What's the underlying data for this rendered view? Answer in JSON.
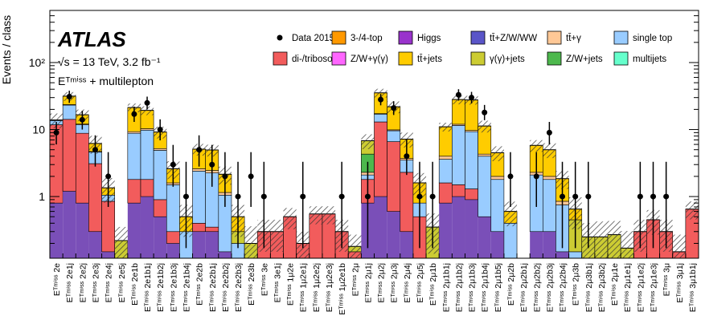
{
  "chart_data": {
    "type": "bar",
    "stacked": true,
    "ylabel": "Events / class",
    "yscale": "log",
    "ylim": [
      0.12,
      600
    ],
    "y_ticks": [
      {
        "value": 1,
        "label": "1"
      },
      {
        "value": 10,
        "label": "10"
      },
      {
        "value": 100,
        "label": "10²"
      }
    ],
    "annotations": {
      "experiment": "ATLAS",
      "energy": "√s = 13 TeV, 3.2 fb⁻¹",
      "selection": "Eᵀᵐⁱˢˢ + multilepton"
    },
    "legend": [
      {
        "label": "Data 2015",
        "type": "marker",
        "color": "#000000"
      },
      {
        "label": "3-/4-top",
        "type": "fill",
        "color": "#ff9900"
      },
      {
        "label": "Higgs",
        "type": "fill",
        "color": "#9933cc"
      },
      {
        "label": "tt̄+Z/W/WW",
        "type": "fill",
        "color": "#5a55c8"
      },
      {
        "label": "tt̄+γ",
        "type": "fill",
        "color": "#ffc896"
      },
      {
        "label": "single top",
        "type": "fill",
        "color": "#99ccff"
      },
      {
        "label": "di-/triboson",
        "type": "fill",
        "color": "#f25c5c"
      },
      {
        "label": "Z/W+γ(γ)",
        "type": "fill",
        "color": "#ff66ff"
      },
      {
        "label": "tt̄+jets",
        "type": "fill",
        "color": "#ffcc00"
      },
      {
        "label": "γ(γ)+jets",
        "type": "fill",
        "color": "#cccc33"
      },
      {
        "label": "Z/W+jets",
        "type": "fill",
        "color": "#4db84d"
      },
      {
        "label": "multijets",
        "type": "fill",
        "color": "#66ffcc"
      }
    ],
    "categories": [
      "E_T^miss 2e",
      "E_T^miss 2e1j",
      "E_T^miss 2e2j",
      "E_T^miss 2e3j",
      "E_T^miss 2e4j",
      "E_T^miss 2e5j",
      "E_T^miss 2e1b",
      "E_T^miss 2e1b1j",
      "E_T^miss 2e1b2j",
      "E_T^miss 2e1b3j",
      "E_T^miss 2e1b4j",
      "E_T^miss 2e2b",
      "E_T^miss 2e2b1j",
      "E_T^miss 2e2b2j",
      "E_T^miss 2e2b3j",
      "E_T^miss 2e3b",
      "E_T^miss 3e",
      "E_T^miss 3e1j",
      "E_T^miss 1μ2e",
      "E_T^miss 1μ2e1j",
      "E_T^miss 1μ2e2j",
      "E_T^miss 1μ2e3j",
      "E_T^miss 1μ2e1b",
      "E_T^miss 2μ",
      "E_T^miss 2μ1j",
      "E_T^miss 2μ2j",
      "E_T^miss 2μ3j",
      "E_T^miss 2μ4j",
      "E_T^miss 2μ5j",
      "E_T^miss 2μ1b",
      "E_T^miss 2μ1b1j",
      "E_T^miss 2μ1b2j",
      "E_T^miss 2μ1b3j",
      "E_T^miss 2μ1b4j",
      "E_T^miss 2μ1b5j",
      "E_T^miss 2μ2b",
      "E_T^miss 2μ2b1j",
      "E_T^miss 2μ2b2j",
      "E_T^miss 2μ2b3j",
      "E_T^miss 2μ2b4j",
      "E_T^miss 2μ3b",
      "E_T^miss 2μ3b1j",
      "E_T^miss 2μ3b2j",
      "E_T^miss 2μ1e",
      "E_T^miss 2μ1e1j",
      "E_T^miss 2μ1e2j",
      "E_T^miss 2μ1e3j",
      "E_T^miss 3μ",
      "E_T^miss 3μ1j",
      "E_T^miss 3μ1b1j"
    ],
    "bins": [
      {
        "bg": 0.8,
        "stack": [
          [
            "di-/triboson",
            11.0
          ],
          [
            "single top",
            1.8
          ],
          [
            "tt̄+γ",
            0.3
          ]
        ],
        "total": 13.9,
        "unc": 0.25,
        "data": 9,
        "elo": 3,
        "ehi": 4
      },
      {
        "bg": 1.2,
        "stack": [
          [
            "di-/triboson",
            13.0
          ],
          [
            "single top",
            9.0
          ],
          [
            "tt̄+γ",
            0.35
          ],
          [
            "tt̄+jets",
            8.0
          ]
        ],
        "total": 31.5,
        "unc": 0.15,
        "data": 31,
        "elo": 6,
        "ehi": 7
      },
      {
        "bg": 0.8,
        "stack": [
          [
            "di-/triboson",
            8.0
          ],
          [
            "single top",
            3.0
          ],
          [
            "tt̄+γ",
            0.3
          ],
          [
            "tt̄+jets",
            4.5
          ]
        ],
        "total": 16.6,
        "unc": 0.2,
        "data": 14,
        "elo": 4,
        "ehi": 5
      },
      {
        "bg": 0.3,
        "stack": [
          [
            "di-/triboson",
            2.8
          ],
          [
            "single top",
            1.5
          ],
          [
            "tt̄+γ",
            0.1
          ],
          [
            "tt̄+jets",
            1.5
          ]
        ],
        "total": 6.2,
        "unc": 0.3,
        "data": 5,
        "elo": 2.2,
        "ehi": 3.2
      },
      {
        "bg": 0.15,
        "stack": [
          [
            "di-/triboson",
            0.7
          ],
          [
            "single top",
            0.2
          ],
          [
            "tt̄+jets",
            0.3
          ]
        ],
        "total": 1.35,
        "unc": 0.4,
        "data": 2,
        "elo": 1.3,
        "ehi": 2.6
      },
      {
        "bg": 0.1,
        "stack": [
          [
            "γ(γ)+jets",
            0.12
          ]
        ],
        "total": 0.22,
        "unc": 0.6,
        "data": null,
        "elo": 0,
        "ehi": 0
      },
      {
        "bg": 0.8,
        "stack": [
          [
            "di-/triboson",
            1.0
          ],
          [
            "single top",
            7.0
          ],
          [
            "tt̄+γ",
            0.5
          ],
          [
            "tt̄+jets",
            12.0
          ]
        ],
        "total": 21.3,
        "unc": 0.15,
        "data": 17,
        "elo": 4,
        "ehi": 5
      },
      {
        "bg": 1.0,
        "stack": [
          [
            "di-/triboson",
            0.8
          ],
          [
            "single top",
            8.0
          ],
          [
            "tt̄+γ",
            0.5
          ],
          [
            "tt̄+jets",
            9.0
          ]
        ],
        "total": 19.3,
        "unc": 0.15,
        "data": 25,
        "elo": 5,
        "ehi": 6
      },
      {
        "bg": 0.5,
        "stack": [
          [
            "di-/triboson",
            0.4
          ],
          [
            "single top",
            4.0
          ],
          [
            "tt̄+γ",
            0.3
          ],
          [
            "tt̄+jets",
            4.0
          ]
        ],
        "total": 9.2,
        "unc": 0.2,
        "data": 10,
        "elo": 3.1,
        "ehi": 4.2
      },
      {
        "bg": 0.2,
        "stack": [
          [
            "di-/triboson",
            0.1
          ],
          [
            "single top",
            1.2
          ],
          [
            "tt̄+γ",
            0.1
          ],
          [
            "tt̄+jets",
            1.0
          ]
        ],
        "total": 2.6,
        "unc": 0.3,
        "data": 3,
        "elo": 1.6,
        "ehi": 2.9
      },
      {
        "bg": 0.1,
        "stack": [
          [
            "single top",
            0.2
          ],
          [
            "tt̄+jets",
            0.2
          ]
        ],
        "total": 0.5,
        "unc": 0.5,
        "data": 1,
        "elo": 0.83,
        "ehi": 2.3
      },
      {
        "bg": 0.3,
        "stack": [
          [
            "di-/triboson",
            0.1
          ],
          [
            "single top",
            2.0
          ],
          [
            "tt̄+γ",
            0.2
          ],
          [
            "tt̄+jets",
            2.5
          ]
        ],
        "total": 5.1,
        "unc": 0.2,
        "data": 5,
        "elo": 2.2,
        "ehi": 3.2
      },
      {
        "bg": 0.3,
        "stack": [
          [
            "di-/triboson",
            0.05
          ],
          [
            "single top",
            1.9
          ],
          [
            "tt̄+γ",
            0.2
          ],
          [
            "tt̄+jets",
            2.5
          ]
        ],
        "total": 4.95,
        "unc": 0.2,
        "data": 3,
        "elo": 1.6,
        "ehi": 2.9
      },
      {
        "bg": 0.15,
        "stack": [
          [
            "single top",
            0.9
          ],
          [
            "tt̄+γ",
            0.1
          ],
          [
            "tt̄+jets",
            1.0
          ]
        ],
        "total": 2.15,
        "unc": 0.3,
        "data": 2,
        "elo": 1.3,
        "ehi": 2.6
      },
      {
        "bg": 0.05,
        "stack": [
          [
            "single top",
            0.15
          ],
          [
            "γ(γ)+jets",
            0.1
          ],
          [
            "tt̄+jets",
            0.2
          ]
        ],
        "total": 0.5,
        "unc": 0.5,
        "data": 1,
        "elo": 0.83,
        "ehi": 2.3
      },
      {
        "bg": 0.05,
        "stack": [
          [
            "single top",
            0.05
          ],
          [
            "γ(γ)+jets",
            0.1
          ]
        ],
        "total": 0.2,
        "unc": 0.8,
        "data": 2,
        "elo": 1.3,
        "ehi": 2.6
      },
      {
        "bg": 0.05,
        "stack": [
          [
            "di-/triboson",
            0.25
          ]
        ],
        "total": 0.3,
        "unc": 0.5,
        "data": 1,
        "elo": 0.83,
        "ehi": 2.3
      },
      {
        "bg": 0.05,
        "stack": [
          [
            "di-/triboson",
            0.25
          ]
        ],
        "total": 0.3,
        "unc": 0.5,
        "data": null,
        "elo": 0,
        "ehi": 0
      },
      {
        "bg": 0.1,
        "stack": [
          [
            "di-/triboson",
            0.4
          ]
        ],
        "total": 0.5,
        "unc": 0.35,
        "data": null,
        "elo": 0,
        "ehi": 0
      },
      {
        "bg": 0.05,
        "stack": [
          [
            "di-/triboson",
            0.15
          ]
        ],
        "total": 0.2,
        "unc": 0.5,
        "data": 1,
        "elo": 0.83,
        "ehi": 2.3
      },
      {
        "bg": 0.05,
        "stack": [
          [
            "di-/triboson",
            0.5
          ]
        ],
        "total": 0.55,
        "unc": 0.3,
        "data": null,
        "elo": 0,
        "ehi": 0
      },
      {
        "bg": 0.05,
        "stack": [
          [
            "di-/triboson",
            0.5
          ]
        ],
        "total": 0.55,
        "unc": 0.3,
        "data": null,
        "elo": 0,
        "ehi": 0
      },
      {
        "bg": 0.05,
        "stack": [
          [
            "di-/triboson",
            0.25
          ]
        ],
        "total": 0.3,
        "unc": 0.5,
        "data": 1,
        "elo": 0.83,
        "ehi": 2.3
      },
      {
        "bg": 0.1,
        "stack": [
          [
            "di-/triboson",
            0.05
          ],
          [
            "γ(γ)+jets",
            0.03
          ]
        ],
        "total": 0.18,
        "unc": 0.5,
        "data": null,
        "elo": 0,
        "ehi": 0
      },
      {
        "bg": 0.8,
        "stack": [
          [
            "di-/triboson",
            1.0
          ],
          [
            "single top",
            0.3
          ],
          [
            "tt̄+γ",
            0.2
          ],
          [
            "Z/W+jets",
            2.0
          ],
          [
            "γ(γ)+jets",
            2.5
          ]
        ],
        "total": 6.8,
        "unc": 0.25,
        "data": 1,
        "elo": 0.83,
        "ehi": 2.3
      },
      {
        "bg": 1.0,
        "stack": [
          [
            "di-/triboson",
            12.0
          ],
          [
            "single top",
            4.0
          ],
          [
            "tt̄+γ",
            0.3
          ],
          [
            "tt̄+jets",
            18.0
          ]
        ],
        "total": 35.3,
        "unc": 0.15,
        "data": 28,
        "elo": 5,
        "ehi": 6
      },
      {
        "bg": 0.6,
        "stack": [
          [
            "di-/triboson",
            6.0
          ],
          [
            "single top",
            3.0
          ],
          [
            "tt̄+γ",
            0.3
          ],
          [
            "tt̄+jets",
            12.0
          ]
        ],
        "total": 21.9,
        "unc": 0.2,
        "data": 21,
        "elo": 4.5,
        "ehi": 5.5
      },
      {
        "bg": 0.3,
        "stack": [
          [
            "di-/triboson",
            2.0
          ],
          [
            "single top",
            1.2
          ],
          [
            "tt̄+γ",
            0.2
          ],
          [
            "tt̄+jets",
            3.5
          ]
        ],
        "total": 7.2,
        "unc": 0.25,
        "data": 4,
        "elo": 1.9,
        "ehi": 3.2
      },
      {
        "bg": 0.1,
        "stack": [
          [
            "di-/triboson",
            0.4
          ],
          [
            "single top",
            0.3
          ],
          [
            "tt̄+jets",
            0.8
          ]
        ],
        "total": 1.6,
        "unc": 0.4,
        "data": 1,
        "elo": 0.83,
        "ehi": 2.3
      },
      {
        "bg": 0.05,
        "stack": [
          [
            "γ(γ)+jets",
            0.3
          ]
        ],
        "total": 0.35,
        "unc": 0.6,
        "data": 1,
        "elo": 0.83,
        "ehi": 2.3
      },
      {
        "bg": 0.8,
        "stack": [
          [
            "di-/triboson",
            0.8
          ],
          [
            "single top",
            2.0
          ],
          [
            "tt̄+γ",
            0.4
          ],
          [
            "tt̄+jets",
            7.0
          ]
        ],
        "total": 11.0,
        "unc": 0.15,
        "data": null,
        "elo": 0,
        "ehi": 0
      },
      {
        "bg": 1.0,
        "stack": [
          [
            "di-/triboson",
            0.5
          ],
          [
            "single top",
            10.0
          ],
          [
            "tt̄+γ",
            0.5
          ],
          [
            "tt̄+jets",
            16.0
          ]
        ],
        "total": 28.0,
        "unc": 0.15,
        "data": 33,
        "elo": 6,
        "ehi": 7
      },
      {
        "bg": 0.9,
        "stack": [
          [
            "di-/triboson",
            0.4
          ],
          [
            "single top",
            8.0
          ],
          [
            "tt̄+γ",
            0.4
          ],
          [
            "tt̄+jets",
            18.0
          ]
        ],
        "total": 27.7,
        "unc": 0.15,
        "data": 30,
        "elo": 5.5,
        "ehi": 6.5
      },
      {
        "bg": 0.5,
        "stack": [
          [
            "single top",
            3.5
          ],
          [
            "tt̄+γ",
            0.3
          ],
          [
            "tt̄+jets",
            7.0
          ]
        ],
        "total": 11.3,
        "unc": 0.2,
        "data": 18,
        "elo": 4.2,
        "ehi": 5.3
      },
      {
        "bg": 0.3,
        "stack": [
          [
            "single top",
            1.5
          ],
          [
            "tt̄+γ",
            0.2
          ],
          [
            "tt̄+jets",
            2.5
          ]
        ],
        "total": 4.5,
        "unc": 0.25,
        "data": null,
        "elo": 0,
        "ehi": 0
      },
      {
        "bg": 0.1,
        "stack": [
          [
            "single top",
            0.3
          ],
          [
            "tt̄+jets",
            0.2
          ]
        ],
        "total": 0.6,
        "unc": 0.4,
        "data": 2,
        "elo": 1.3,
        "ehi": 2.6
      },
      {
        "bg": 0.05,
        "stack": [
          [
            "single top",
            0.05
          ]
        ],
        "total": 0.1,
        "unc": 0.0,
        "data": null,
        "elo": 0,
        "ehi": 0
      },
      {
        "bg": 0.3,
        "stack": [
          [
            "single top",
            1.8
          ],
          [
            "tt̄+γ",
            0.2
          ],
          [
            "tt̄+jets",
            3.5
          ]
        ],
        "total": 5.8,
        "unc": 0.2,
        "data": 2,
        "elo": 1.3,
        "ehi": 2.6
      },
      {
        "bg": 0.3,
        "stack": [
          [
            "single top",
            1.5
          ],
          [
            "tt̄+γ",
            0.2
          ],
          [
            "tt̄+jets",
            3.0
          ]
        ],
        "total": 5.0,
        "unc": 0.25,
        "data": 9,
        "elo": 3,
        "ehi": 4
      },
      {
        "bg": 0.15,
        "stack": [
          [
            "single top",
            0.6
          ],
          [
            "tt̄+γ",
            0.1
          ],
          [
            "tt̄+jets",
            1.0
          ]
        ],
        "total": 1.85,
        "unc": 0.3,
        "data": 1,
        "elo": 0.83,
        "ehi": 2.3
      },
      {
        "bg": 0.05,
        "stack": [
          [
            "single top",
            0.1
          ],
          [
            "γ(γ)+jets",
            0.3
          ],
          [
            "tt̄+jets",
            0.2
          ]
        ],
        "total": 0.65,
        "unc": 0.5,
        "data": 1,
        "elo": 0.83,
        "ehi": 2.3
      },
      {
        "bg": 0.05,
        "stack": [
          [
            "single top",
            0.05
          ],
          [
            "γ(γ)+jets",
            0.15
          ]
        ],
        "total": 0.25,
        "unc": 0.6,
        "data": 1,
        "elo": 0.83,
        "ehi": 2.3
      },
      {
        "bg": 0.05,
        "stack": [
          [
            "γ(γ)+jets",
            0.2
          ]
        ],
        "total": 0.25,
        "unc": 0.7,
        "data": null,
        "elo": 0,
        "ehi": 0
      },
      {
        "bg": 0.05,
        "stack": [
          [
            "γ(γ)+jets",
            0.22
          ]
        ],
        "total": 0.27,
        "unc": 0.6,
        "data": null,
        "elo": 0,
        "ehi": 0
      },
      {
        "bg": 0.05,
        "stack": [
          [
            "γ(γ)+jets",
            0.12
          ]
        ],
        "total": 0.17,
        "unc": 0.8,
        "data": null,
        "elo": 0,
        "ehi": 0
      },
      {
        "bg": 0.05,
        "stack": [
          [
            "di-/triboson",
            0.25
          ]
        ],
        "total": 0.3,
        "unc": 0.5,
        "data": 1,
        "elo": 0.83,
        "ehi": 2.3
      },
      {
        "bg": 0.05,
        "stack": [
          [
            "di-/triboson",
            0.4
          ]
        ],
        "total": 0.45,
        "unc": 0.4,
        "data": 1,
        "elo": 0.83,
        "ehi": 2.3
      },
      {
        "bg": 0.05,
        "stack": [
          [
            "di-/triboson",
            0.25
          ]
        ],
        "total": 0.3,
        "unc": 0.5,
        "data": 1,
        "elo": 0.83,
        "ehi": 2.3
      },
      {
        "bg": 0.05,
        "stack": [
          [
            "di-/triboson",
            0.1
          ]
        ],
        "total": 0.15,
        "unc": 0.8,
        "data": null,
        "elo": 0,
        "ehi": 0
      },
      {
        "bg": 0.05,
        "stack": [
          [
            "di-/triboson",
            0.6
          ]
        ],
        "total": 0.65,
        "unc": 0.3,
        "data": null,
        "elo": 0,
        "ehi": 0
      }
    ]
  }
}
